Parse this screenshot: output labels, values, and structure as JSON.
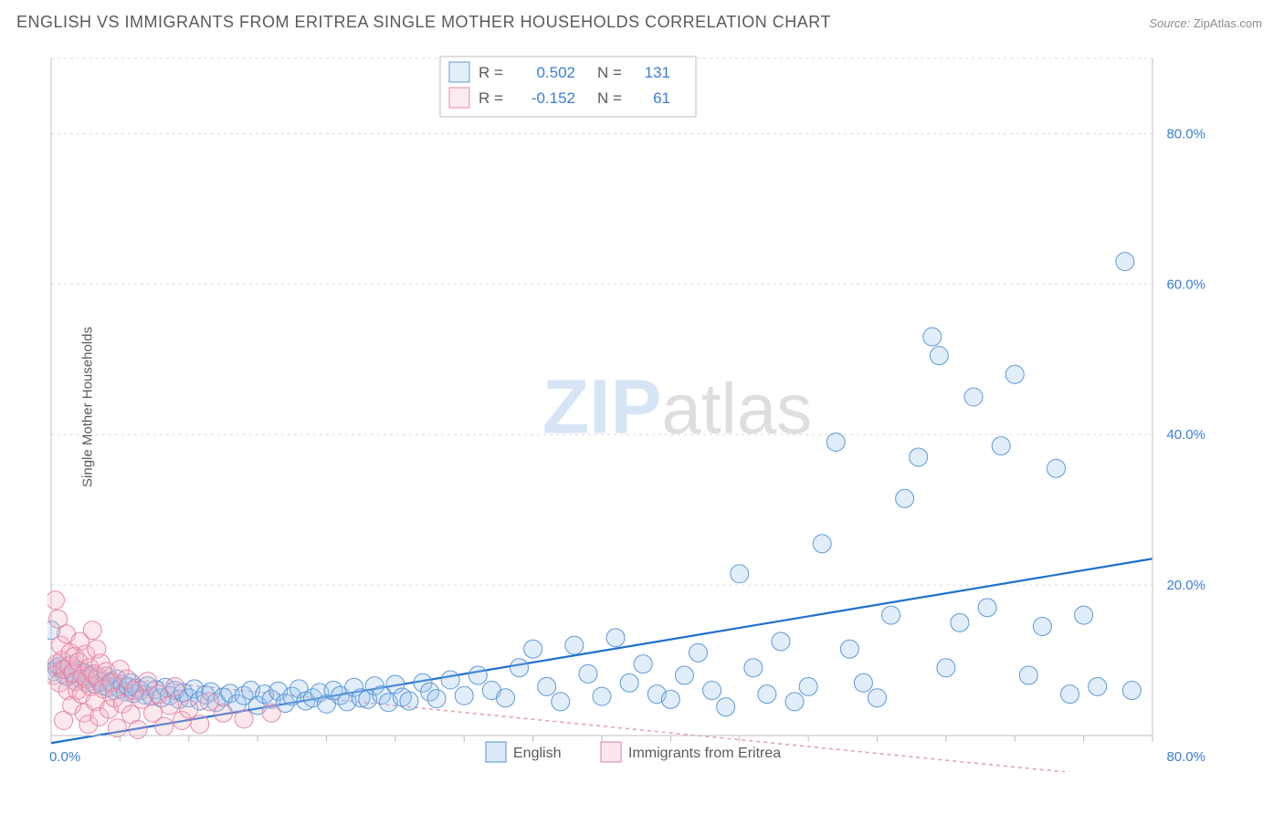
{
  "title": "ENGLISH VS IMMIGRANTS FROM ERITREA SINGLE MOTHER HOUSEHOLDS CORRELATION CHART",
  "source_label": "Source:",
  "source_value": "ZipAtlas.com",
  "yaxis_title": "Single Mother Households",
  "watermark": {
    "zip": "ZIP",
    "atlas": "atlas"
  },
  "chart": {
    "type": "scatter",
    "background_color": "#ffffff",
    "grid_color": "#d9d9d9",
    "axis_color": "#bfbfbf",
    "tick_color": "#bfbfbf",
    "xlim": [
      0,
      80
    ],
    "ylim": [
      0,
      90
    ],
    "x_ticks_major": [
      0,
      80
    ],
    "x_ticks_minor_step": 5,
    "y_gridlines": [
      20,
      40,
      60,
      80,
      90
    ],
    "y_tick_labels": [
      {
        "v": 20,
        "label": "20.0%"
      },
      {
        "v": 40,
        "label": "40.0%"
      },
      {
        "v": 60,
        "label": "60.0%"
      },
      {
        "v": 80,
        "label": "80.0%"
      }
    ],
    "x_tick_labels": [
      {
        "v": 0,
        "label": "0.0%"
      },
      {
        "v": 80,
        "label": "80.0%"
      }
    ],
    "series": [
      {
        "name": "English",
        "marker_color": "#9cc3eb",
        "marker_stroke": "#4f8fd6",
        "marker_radius": 10,
        "marker_opacity": 0.3,
        "trend": {
          "color": "#1f6fd0",
          "width": 2.2,
          "dash": "none",
          "y_at_x0": -1.0,
          "y_at_x80": 23.5
        },
        "points": [
          [
            0.0,
            14.0
          ],
          [
            0.2,
            8.5
          ],
          [
            0.4,
            9.0
          ],
          [
            0.6,
            9.2
          ],
          [
            0.8,
            8.8
          ],
          [
            1.0,
            8.0
          ],
          [
            1.2,
            7.8
          ],
          [
            1.4,
            9.4
          ],
          [
            1.6,
            8.2
          ],
          [
            1.8,
            7.2
          ],
          [
            2.0,
            8.6
          ],
          [
            2.2,
            7.5
          ],
          [
            2.4,
            8.3
          ],
          [
            2.6,
            7.0
          ],
          [
            2.8,
            7.8
          ],
          [
            3.0,
            8.0
          ],
          [
            3.2,
            6.8
          ],
          [
            3.4,
            7.4
          ],
          [
            3.6,
            7.1
          ],
          [
            3.8,
            6.6
          ],
          [
            4.0,
            7.9
          ],
          [
            4.2,
            6.4
          ],
          [
            4.4,
            7.2
          ],
          [
            4.6,
            6.0
          ],
          [
            4.8,
            7.5
          ],
          [
            5.0,
            6.2
          ],
          [
            5.2,
            6.8
          ],
          [
            5.4,
            5.8
          ],
          [
            5.6,
            6.5
          ],
          [
            5.8,
            7.0
          ],
          [
            6.0,
            5.6
          ],
          [
            6.2,
            6.3
          ],
          [
            6.5,
            6.0
          ],
          [
            6.8,
            5.4
          ],
          [
            7.0,
            6.6
          ],
          [
            7.3,
            5.2
          ],
          [
            7.6,
            6.1
          ],
          [
            8.0,
            5.0
          ],
          [
            8.3,
            6.4
          ],
          [
            8.6,
            5.3
          ],
          [
            9.0,
            6.0
          ],
          [
            9.3,
            4.8
          ],
          [
            9.6,
            5.7
          ],
          [
            10.0,
            5.0
          ],
          [
            10.4,
            6.2
          ],
          [
            10.8,
            4.6
          ],
          [
            11.2,
            5.4
          ],
          [
            11.6,
            5.8
          ],
          [
            12.0,
            4.4
          ],
          [
            12.5,
            5.1
          ],
          [
            13.0,
            5.6
          ],
          [
            13.5,
            4.2
          ],
          [
            14.0,
            5.3
          ],
          [
            14.5,
            6.0
          ],
          [
            15.0,
            4.0
          ],
          [
            15.5,
            5.5
          ],
          [
            16.0,
            4.8
          ],
          [
            16.5,
            5.9
          ],
          [
            17.0,
            4.3
          ],
          [
            17.5,
            5.2
          ],
          [
            18.0,
            6.2
          ],
          [
            18.5,
            4.6
          ],
          [
            19.0,
            5.0
          ],
          [
            19.5,
            5.7
          ],
          [
            20.0,
            4.2
          ],
          [
            20.5,
            6.0
          ],
          [
            21.0,
            5.3
          ],
          [
            21.5,
            4.5
          ],
          [
            22.0,
            6.4
          ],
          [
            22.5,
            5.0
          ],
          [
            23.0,
            4.8
          ],
          [
            23.5,
            6.6
          ],
          [
            24.0,
            5.4
          ],
          [
            24.5,
            4.4
          ],
          [
            25.0,
            6.8
          ],
          [
            25.5,
            5.1
          ],
          [
            26.0,
            4.6
          ],
          [
            27.0,
            7.0
          ],
          [
            27.5,
            5.8
          ],
          [
            28.0,
            4.9
          ],
          [
            29.0,
            7.4
          ],
          [
            30.0,
            5.3
          ],
          [
            31.0,
            8.0
          ],
          [
            32.0,
            6.0
          ],
          [
            33.0,
            5.0
          ],
          [
            34.0,
            9.0
          ],
          [
            35.0,
            11.5
          ],
          [
            36.0,
            6.5
          ],
          [
            37.0,
            4.5
          ],
          [
            38.0,
            12.0
          ],
          [
            39.0,
            8.2
          ],
          [
            40.0,
            5.2
          ],
          [
            41.0,
            13.0
          ],
          [
            42.0,
            7.0
          ],
          [
            43.0,
            9.5
          ],
          [
            44.0,
            5.5
          ],
          [
            45.0,
            4.8
          ],
          [
            46.0,
            8.0
          ],
          [
            47.0,
            11.0
          ],
          [
            48.0,
            6.0
          ],
          [
            49.0,
            3.8
          ],
          [
            50.0,
            21.5
          ],
          [
            51.0,
            9.0
          ],
          [
            52.0,
            5.5
          ],
          [
            53.0,
            12.5
          ],
          [
            54.0,
            4.5
          ],
          [
            55.0,
            6.5
          ],
          [
            56.0,
            25.5
          ],
          [
            57.0,
            39.0
          ],
          [
            58.0,
            11.5
          ],
          [
            59.0,
            7.0
          ],
          [
            60.0,
            5.0
          ],
          [
            61.0,
            16.0
          ],
          [
            62.0,
            31.5
          ],
          [
            63.0,
            37.0
          ],
          [
            64.0,
            53.0
          ],
          [
            64.5,
            50.5
          ],
          [
            65.0,
            9.0
          ],
          [
            66.0,
            15.0
          ],
          [
            67.0,
            45.0
          ],
          [
            68.0,
            17.0
          ],
          [
            69.0,
            38.5
          ],
          [
            70.0,
            48.0
          ],
          [
            71.0,
            8.0
          ],
          [
            72.0,
            14.5
          ],
          [
            73.0,
            35.5
          ],
          [
            74.0,
            5.5
          ],
          [
            75.0,
            16.0
          ],
          [
            76.0,
            6.5
          ],
          [
            78.0,
            63.0
          ],
          [
            78.5,
            6.0
          ]
        ]
      },
      {
        "name": "Immigrants from Eritrea",
        "marker_color": "#f4b6c8",
        "marker_stroke": "#e67ca0",
        "marker_radius": 10,
        "marker_opacity": 0.32,
        "trend": {
          "color": "#e89ab5",
          "width": 1.5,
          "dash": "4,4",
          "y_at_x0": 8.5,
          "y_at_x80": -6.0
        },
        "points": [
          [
            0.2,
            8.0
          ],
          [
            0.3,
            18.0
          ],
          [
            0.4,
            9.5
          ],
          [
            0.5,
            15.5
          ],
          [
            0.6,
            7.0
          ],
          [
            0.7,
            12.0
          ],
          [
            0.8,
            10.0
          ],
          [
            0.9,
            2.0
          ],
          [
            1.0,
            8.8
          ],
          [
            1.1,
            13.5
          ],
          [
            1.2,
            6.0
          ],
          [
            1.3,
            9.2
          ],
          [
            1.4,
            11.0
          ],
          [
            1.5,
            4.0
          ],
          [
            1.6,
            8.4
          ],
          [
            1.7,
            10.5
          ],
          [
            1.8,
            7.2
          ],
          [
            1.9,
            6.0
          ],
          [
            2.0,
            9.8
          ],
          [
            2.1,
            12.5
          ],
          [
            2.2,
            5.5
          ],
          [
            2.3,
            8.0
          ],
          [
            2.4,
            3.0
          ],
          [
            2.5,
            10.8
          ],
          [
            2.6,
            7.5
          ],
          [
            2.7,
            1.5
          ],
          [
            2.8,
            9.0
          ],
          [
            2.9,
            6.5
          ],
          [
            3.0,
            14.0
          ],
          [
            3.1,
            8.2
          ],
          [
            3.2,
            4.5
          ],
          [
            3.3,
            11.5
          ],
          [
            3.4,
            7.8
          ],
          [
            3.5,
            2.5
          ],
          [
            3.6,
            9.6
          ],
          [
            3.8,
            6.2
          ],
          [
            4.0,
            8.5
          ],
          [
            4.2,
            3.5
          ],
          [
            4.4,
            7.0
          ],
          [
            4.6,
            5.0
          ],
          [
            4.8,
            1.0
          ],
          [
            5.0,
            8.8
          ],
          [
            5.2,
            4.2
          ],
          [
            5.5,
            7.5
          ],
          [
            5.8,
            2.8
          ],
          [
            6.0,
            6.0
          ],
          [
            6.3,
            0.8
          ],
          [
            6.6,
            4.8
          ],
          [
            7.0,
            7.2
          ],
          [
            7.4,
            3.0
          ],
          [
            7.8,
            5.5
          ],
          [
            8.2,
            1.2
          ],
          [
            8.6,
            4.0
          ],
          [
            9.0,
            6.5
          ],
          [
            9.5,
            2.0
          ],
          [
            10.0,
            3.5
          ],
          [
            10.8,
            1.5
          ],
          [
            11.5,
            4.5
          ],
          [
            12.5,
            3.0
          ],
          [
            14.0,
            2.2
          ],
          [
            16.0,
            3.0
          ]
        ]
      }
    ],
    "legend_top": {
      "border_color": "#bfbfbf",
      "entries": [
        {
          "swatch_fill": "#9cc3eb",
          "swatch_stroke": "#4f8fd6",
          "r_label": "R =",
          "r_value": "0.502",
          "n_label": "N =",
          "n_value": "131"
        },
        {
          "swatch_fill": "#f4b6c8",
          "swatch_stroke": "#e67ca0",
          "r_label": "R =",
          "r_value": "-0.152",
          "n_label": "N =",
          "n_value": "61"
        }
      ]
    },
    "legend_bottom": {
      "entries": [
        {
          "swatch_fill": "#9cc3eb",
          "swatch_stroke": "#4f8fd6",
          "label": "English"
        },
        {
          "swatch_fill": "#f4b6c8",
          "swatch_stroke": "#e67ca0",
          "label": "Immigrants from Eritrea"
        }
      ]
    }
  }
}
